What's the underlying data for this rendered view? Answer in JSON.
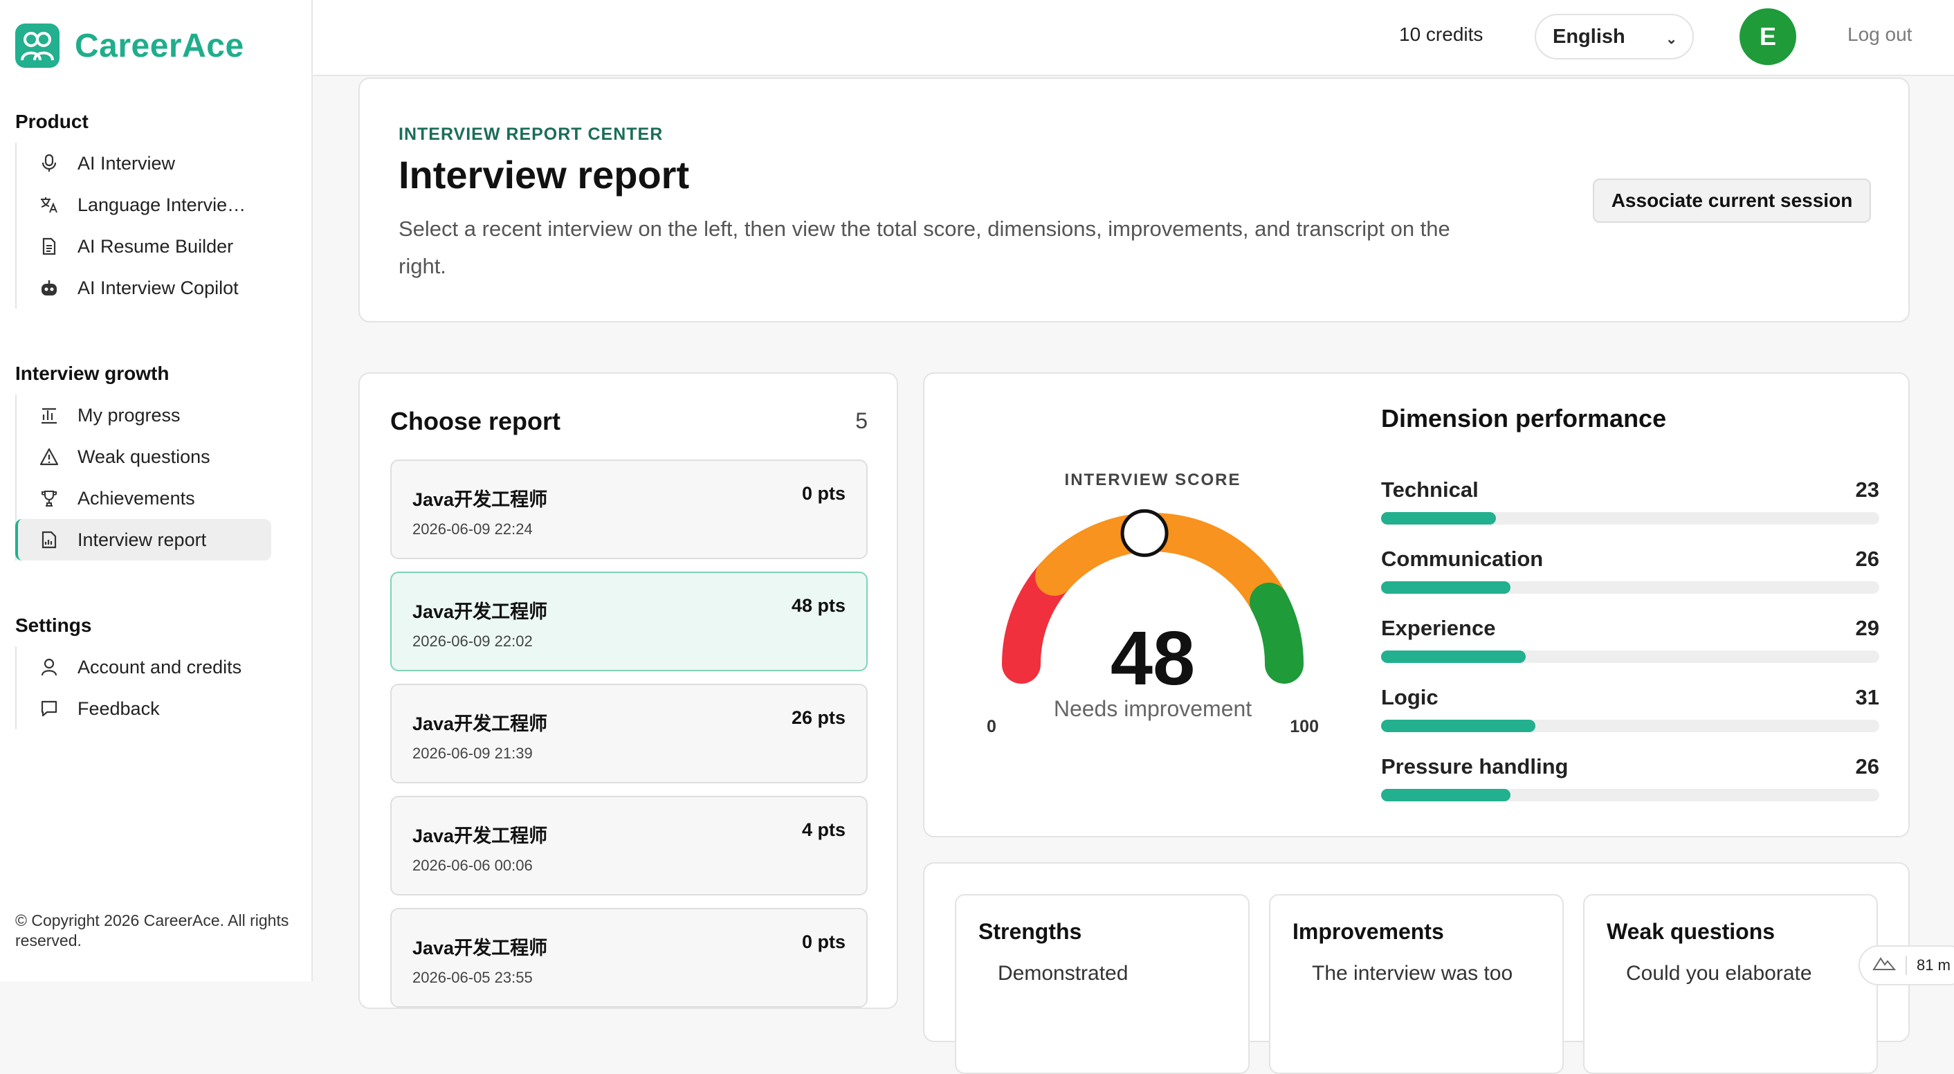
{
  "brand": {
    "name": "CareerAce"
  },
  "sidebar": {
    "sections": [
      {
        "heading": "Product",
        "items": [
          {
            "label": "AI Interview",
            "icon": "mic-icon"
          },
          {
            "label": "Language Intervie…",
            "icon": "translate-icon"
          },
          {
            "label": "AI Resume Builder",
            "icon": "document-icon"
          },
          {
            "label": "AI Interview Copilot",
            "icon": "robot-icon"
          }
        ]
      },
      {
        "heading": "Interview growth",
        "items": [
          {
            "label": "My progress",
            "icon": "chart-icon"
          },
          {
            "label": "Weak questions",
            "icon": "warning-icon"
          },
          {
            "label": "Achievements",
            "icon": "trophy-icon"
          },
          {
            "label": "Interview report",
            "icon": "report-icon",
            "active": true
          }
        ]
      },
      {
        "heading": "Settings",
        "items": [
          {
            "label": "Account and credits",
            "icon": "user-icon"
          },
          {
            "label": "Feedback",
            "icon": "chat-icon"
          }
        ]
      }
    ],
    "copyright": "© Copyright 2026 CareerAce. All rights reserved."
  },
  "topbar": {
    "credits": "10 credits",
    "language": "English",
    "avatar_letter": "E",
    "logout": "Log out"
  },
  "header": {
    "eyebrow": "INTERVIEW REPORT CENTER",
    "title": "Interview report",
    "subtitle": "Select a recent interview on the left, then view the total score, dimensions, improvements, and transcript on the right.",
    "associate_button": "Associate current session"
  },
  "reports": {
    "title": "Choose report",
    "count": "5",
    "items": [
      {
        "title": "Java开发工程师",
        "points": "0 pts",
        "date": "2026-06-09 22:24"
      },
      {
        "title": "Java开发工程师",
        "points": "48 pts",
        "date": "2026-06-09 22:02",
        "selected": true
      },
      {
        "title": "Java开发工程师",
        "points": "26 pts",
        "date": "2026-06-09 21:39"
      },
      {
        "title": "Java开发工程师",
        "points": "4 pts",
        "date": "2026-06-06 00:06"
      },
      {
        "title": "Java开发工程师",
        "points": "0 pts",
        "date": "2026-06-05 23:55"
      }
    ]
  },
  "score": {
    "label": "INTERVIEW SCORE",
    "value": 48,
    "value_text": "48",
    "status": "Needs improvement",
    "min": "0",
    "max": "100",
    "colors": {
      "low": "#f0303c",
      "mid": "#f7931e",
      "high": "#1f9b3a"
    }
  },
  "dimensions": {
    "title": "Dimension performance",
    "max": 100,
    "items": [
      {
        "name": "Technical",
        "value": 23,
        "value_text": "23"
      },
      {
        "name": "Communication",
        "value": 26,
        "value_text": "26"
      },
      {
        "name": "Experience",
        "value": 29,
        "value_text": "29"
      },
      {
        "name": "Logic",
        "value": 31,
        "value_text": "31"
      },
      {
        "name": "Pressure handling",
        "value": 26,
        "value_text": "26"
      }
    ],
    "bar_color": "#22b08f"
  },
  "feedback": [
    {
      "title": "Strengths",
      "text": "Demonstrated"
    },
    {
      "title": "Improvements",
      "text": "The interview was too"
    },
    {
      "title": "Weak questions",
      "text": "Could you elaborate"
    }
  ],
  "widget": {
    "text": "81 m"
  }
}
